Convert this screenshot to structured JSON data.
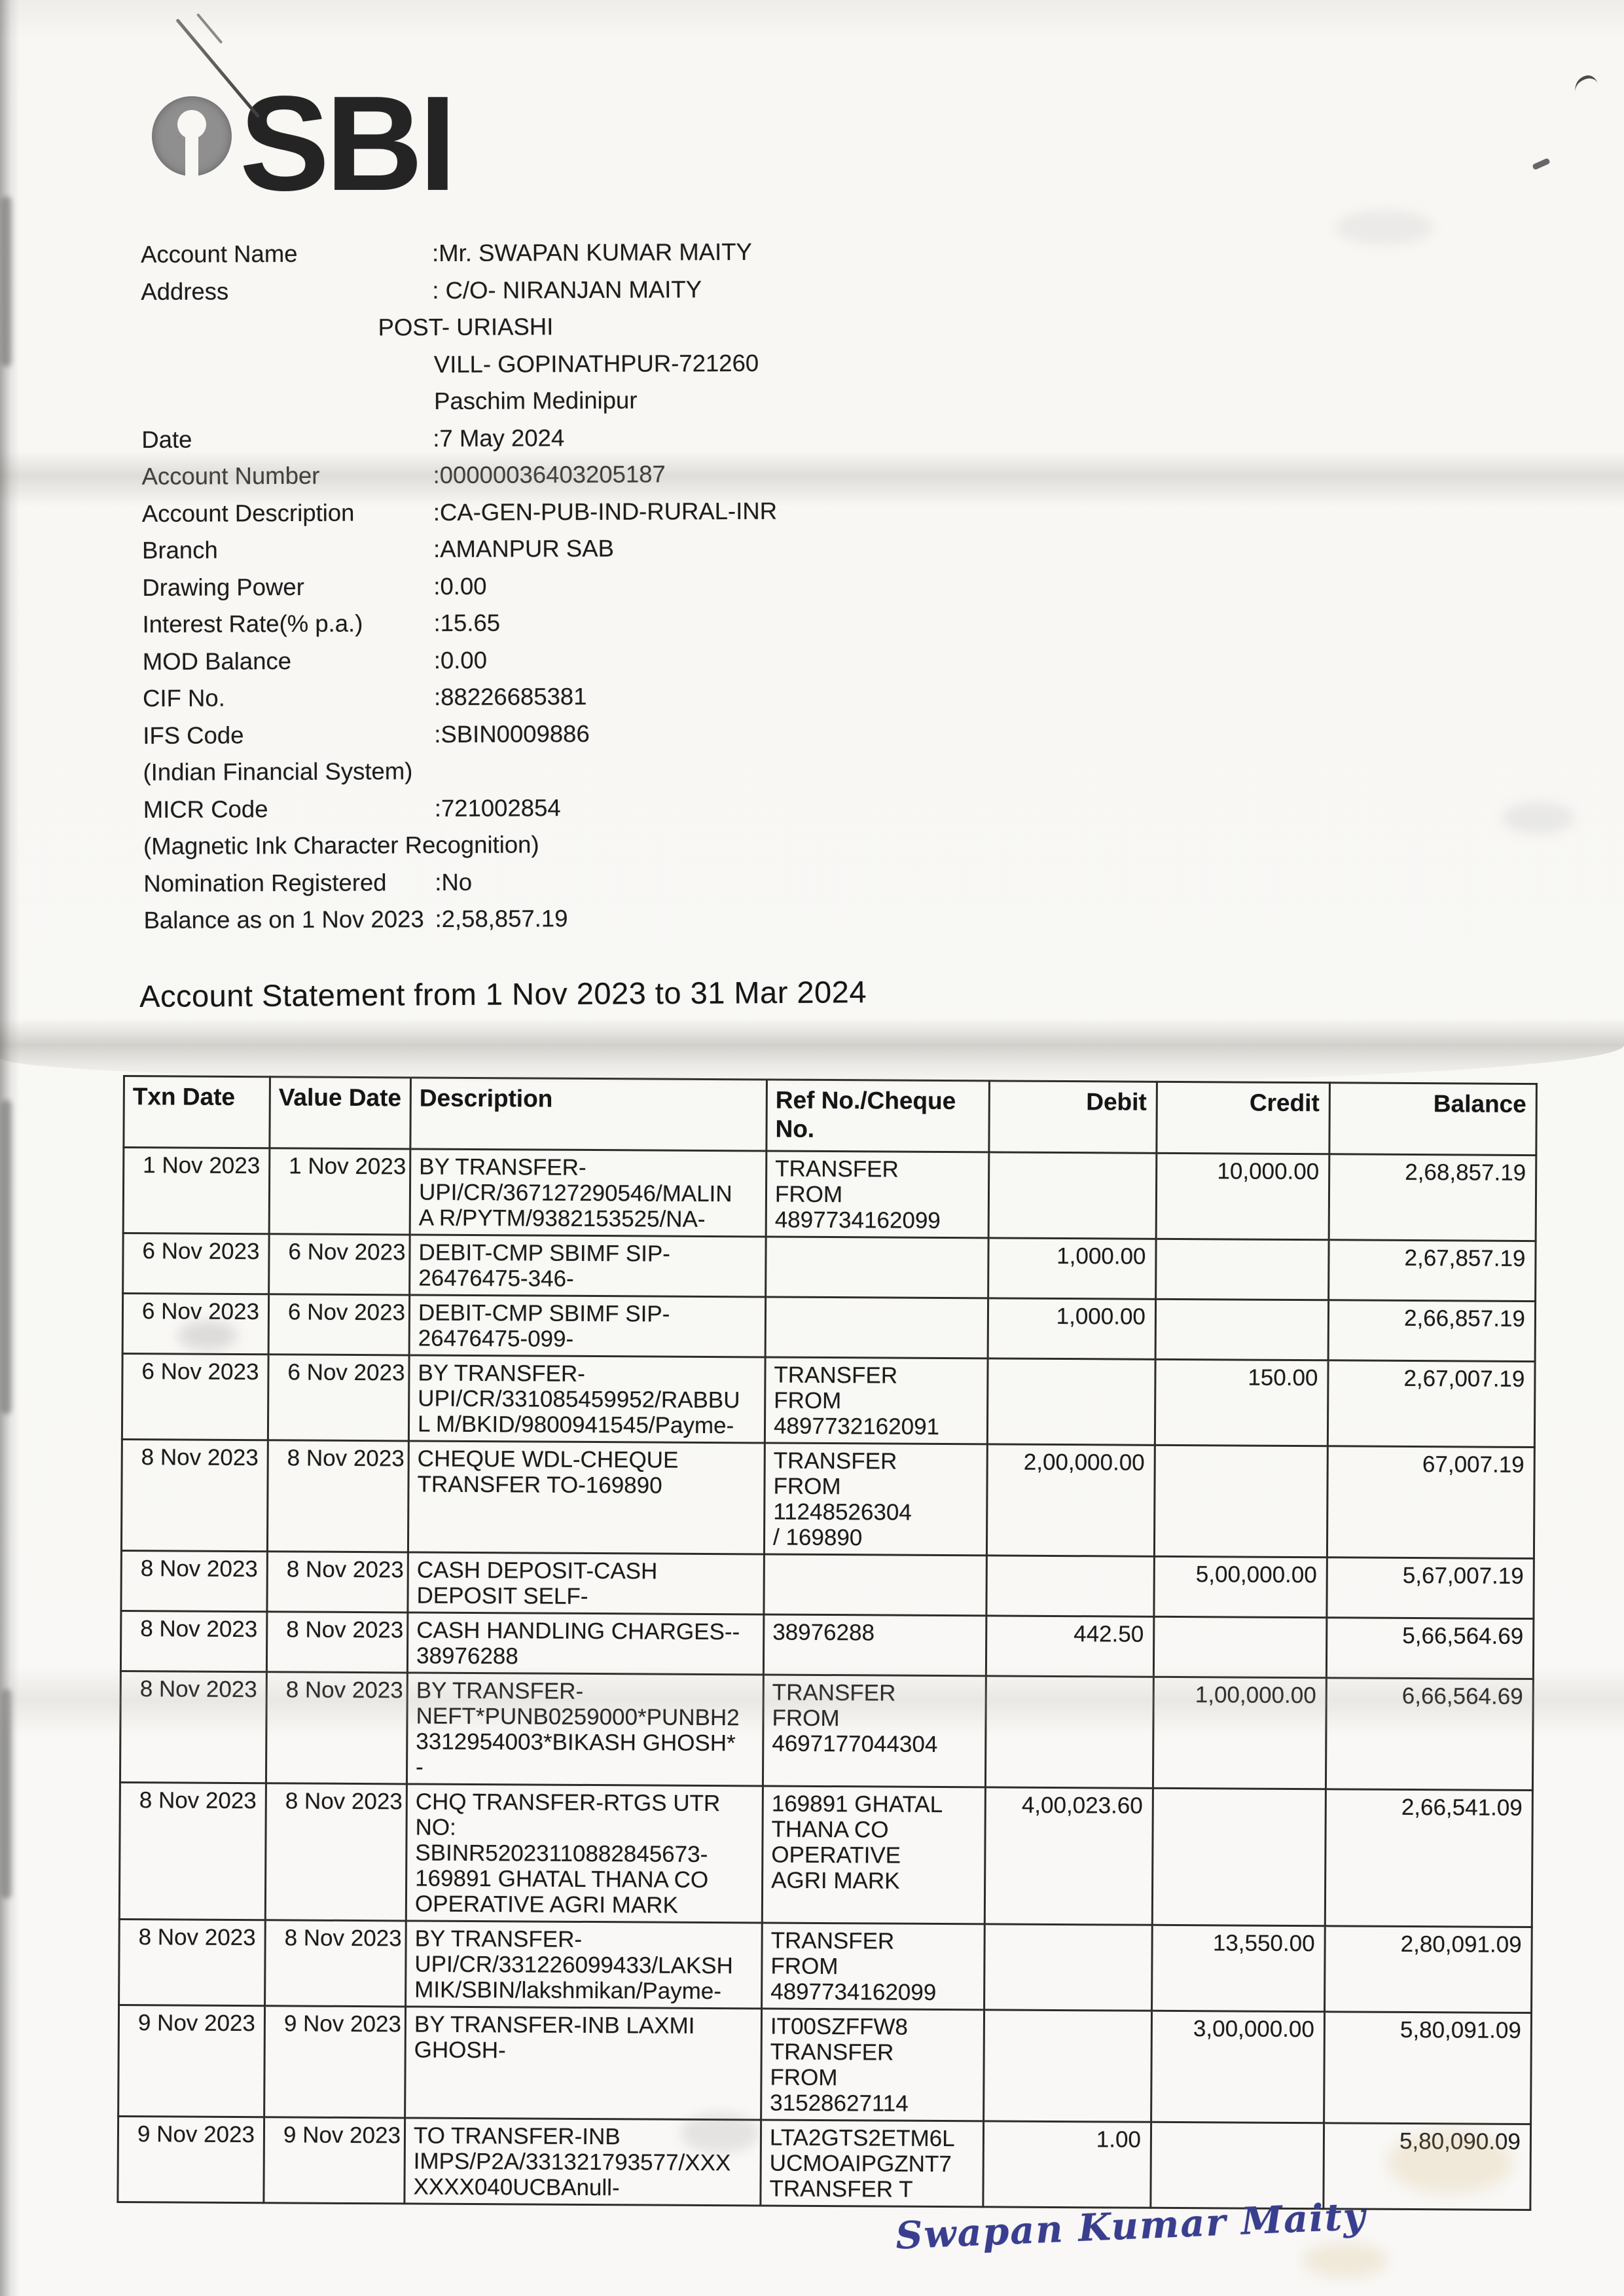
{
  "bank": {
    "logo_text": "SBI"
  },
  "account_info": {
    "rows": [
      {
        "label": "Account Name",
        "value": ":Mr. SWAPAN KUMAR  MAITY",
        "indent": ""
      },
      {
        "label": "Address",
        "value": ": C/O- NIRANJAN MAITY",
        "indent": ""
      },
      {
        "label": "",
        "value": "POST- URIASHI",
        "indent": "post"
      },
      {
        "label": "",
        "value": "VILL- GOPINATHPUR-721260",
        "indent": "value"
      },
      {
        "label": "",
        "value": "Paschim Medinipur",
        "indent": "value"
      },
      {
        "label": "Date",
        "value": ":7 May 2024",
        "indent": ""
      },
      {
        "label": "Account Number",
        "value": ":00000036403205187",
        "indent": ""
      },
      {
        "label": "Account Description",
        "value": ":CA-GEN-PUB-IND-RURAL-INR",
        "indent": ""
      },
      {
        "label": "Branch",
        "value": ":AMANPUR SAB",
        "indent": ""
      },
      {
        "label": "Drawing Power",
        "value": ":0.00",
        "indent": ""
      },
      {
        "label": "Interest Rate(% p.a.)",
        "value": ":15.65",
        "indent": ""
      },
      {
        "label": "MOD Balance",
        "value": ":0.00",
        "indent": ""
      },
      {
        "label": "CIF No.",
        "value": ":88226685381",
        "indent": ""
      },
      {
        "label": "IFS Code",
        "value": ":SBIN0009886",
        "indent": ""
      },
      {
        "label": "(Indian Financial System)",
        "value": "",
        "indent": ""
      },
      {
        "label": "MICR Code",
        "value": ":721002854",
        "indent": ""
      },
      {
        "label": "(Magnetic Ink Character Recognition)",
        "value": "",
        "indent": ""
      },
      {
        "label": "Nomination Registered",
        "value": ":No",
        "indent": ""
      },
      {
        "label": "Balance as on 1 Nov 2023",
        "value": ":2,58,857.19",
        "indent": ""
      }
    ]
  },
  "statement": {
    "title": "Account Statement from 1 Nov 2023 to 31 Mar 2024",
    "columns": [
      "Txn Date",
      "Value Date",
      "Description",
      "Ref No./Cheque No.",
      "Debit",
      "Credit",
      "Balance"
    ],
    "transactions": [
      {
        "txn_date": "1 Nov 2023",
        "value_date": "1 Nov 2023",
        "description": [
          "BY TRANSFER-",
          "UPI/CR/367127290546/MALIN",
          "A R/PYTM/9382153525/NA-"
        ],
        "ref": [
          "TRANSFER",
          "FROM",
          "4897734162099"
        ],
        "debit": "",
        "credit": "10,000.00",
        "balance": "2,68,857.19"
      },
      {
        "txn_date": "6 Nov 2023",
        "value_date": "6 Nov 2023",
        "description": [
          "DEBIT-CMP SBIMF SIP-",
          "26476475-346-"
        ],
        "ref": [],
        "debit": "1,000.00",
        "credit": "",
        "balance": "2,67,857.19"
      },
      {
        "txn_date": "6 Nov 2023",
        "value_date": "6 Nov 2023",
        "description": [
          "DEBIT-CMP SBIMF SIP-",
          "26476475-099-"
        ],
        "ref": [],
        "debit": "1,000.00",
        "credit": "",
        "balance": "2,66,857.19"
      },
      {
        "txn_date": "6 Nov 2023",
        "value_date": "6 Nov 2023",
        "description": [
          "BY TRANSFER-",
          "UPI/CR/331085459952/RABBU",
          "L M/BKID/9800941545/Payme-"
        ],
        "ref": [
          "TRANSFER",
          "FROM",
          "4897732162091"
        ],
        "debit": "",
        "credit": "150.00",
        "balance": "2,67,007.19"
      },
      {
        "txn_date": "8 Nov 2023",
        "value_date": "8 Nov 2023",
        "description": [
          "CHEQUE WDL-CHEQUE",
          "TRANSFER TO-169890"
        ],
        "ref": [
          "TRANSFER",
          "FROM",
          "11248526304",
          "/ 169890"
        ],
        "debit": "2,00,000.00",
        "credit": "",
        "balance": "67,007.19"
      },
      {
        "txn_date": "8 Nov 2023",
        "value_date": "8 Nov 2023",
        "description": [
          "CASH DEPOSIT-CASH",
          "DEPOSIT SELF-"
        ],
        "ref": [],
        "debit": "",
        "credit": "5,00,000.00",
        "balance": "5,67,007.19"
      },
      {
        "txn_date": "8 Nov 2023",
        "value_date": "8 Nov 2023",
        "description": [
          "CASH HANDLING CHARGES--",
          "38976288"
        ],
        "ref": [
          "38976288"
        ],
        "debit": "442.50",
        "credit": "",
        "balance": "5,66,564.69"
      },
      {
        "txn_date": "8 Nov 2023",
        "value_date": "8 Nov 2023",
        "description": [
          "BY TRANSFER-",
          "NEFT*PUNB0259000*PUNBH2",
          "3312954003*BIKASH GHOSH*",
          "-"
        ],
        "ref": [
          "TRANSFER",
          "FROM",
          "4697177044304"
        ],
        "debit": "",
        "credit": "1,00,000.00",
        "balance": "6,66,564.69"
      },
      {
        "txn_date": "8 Nov 2023",
        "value_date": "8 Nov 2023",
        "description": [
          "CHQ TRANSFER-RTGS UTR",
          "NO:",
          "SBINR52023110882845673-",
          "169891 GHATAL THANA CO",
          "OPERATIVE AGRI MARK"
        ],
        "ref": [
          "169891 GHATAL",
          "THANA CO",
          "OPERATIVE",
          "AGRI MARK"
        ],
        "debit": "4,00,023.60",
        "credit": "",
        "balance": "2,66,541.09"
      },
      {
        "txn_date": "8 Nov 2023",
        "value_date": "8 Nov 2023",
        "description": [
          "BY TRANSFER-",
          "UPI/CR/331226099433/LAKSH",
          "MIK/SBIN/lakshmikan/Payme-"
        ],
        "ref": [
          "TRANSFER",
          "FROM",
          "4897734162099"
        ],
        "debit": "",
        "credit": "13,550.00",
        "balance": "2,80,091.09"
      },
      {
        "txn_date": "9 Nov 2023",
        "value_date": "9 Nov 2023",
        "description": [
          "BY TRANSFER-INB LAXMI",
          "GHOSH-"
        ],
        "ref": [
          "IT00SZFFW8",
          "TRANSFER",
          "FROM",
          "31528627114"
        ],
        "debit": "",
        "credit": "3,00,000.00",
        "balance": "5,80,091.09"
      },
      {
        "txn_date": "9 Nov 2023",
        "value_date": "9 Nov 2023",
        "description": [
          "TO TRANSFER-INB",
          "IMPS/P2A/331321793577/XXX",
          "XXXX040UCBAnull-"
        ],
        "ref": [
          "LTA2GTS2ETM6L",
          "UCMOAIPGZNT7",
          "TRANSFER T"
        ],
        "debit": "1.00",
        "credit": "",
        "balance": "5,80,090.09"
      }
    ]
  },
  "signature": {
    "text": "Swapan Kumar Maity"
  }
}
